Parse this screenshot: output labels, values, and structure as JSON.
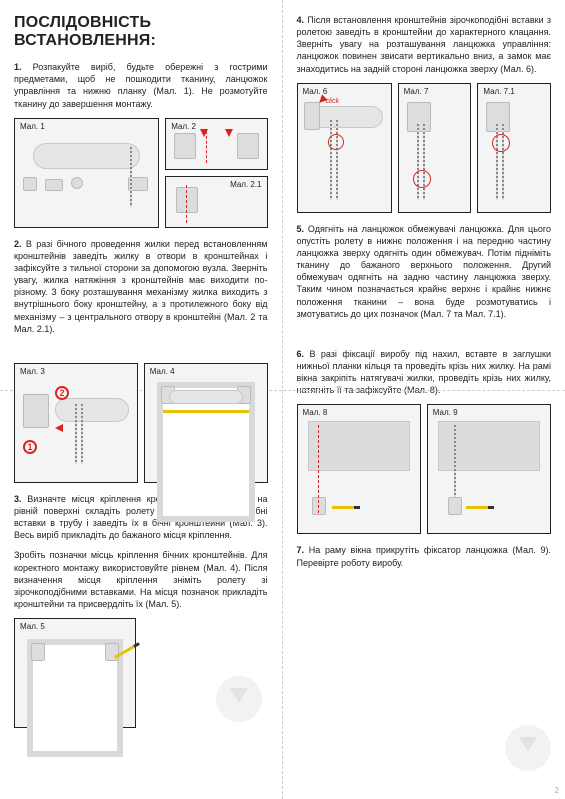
{
  "title": "Послідовність встановлення:",
  "left": {
    "p1": "1. Розпакуйте виріб, будьте обережні з гострими предметами, щоб не пошкодити тканину, ланцюжок управління та нижню планку (Мал. 1). Не розмотуйте тканину до завершення монтажу.",
    "p2": "2. В разі бічного проведення жилки перед встановленням кронштейнів заведіть жилку в отвори в кронштейнах і зафіксуйте з тильної сторони за допомогою вузла. Зверніть увагу, жилка натяжіння з кронштейнів має виходити по-різному. З боку розташування механізму жилка виходить з внутрішнього боку кронштейну, а з протилежного боку від механізму – з центрального отвору в кронштейні (Мал. 2 та Мал. 2.1).",
    "p3a": "3. Визначте місця кріплення кронштейнів. Для цього на рівній поверхні складіть ролету – вставте зірочкоподібні вставки в трубу і заведіть їх в бічні кронштейни (Мал. 3). Весь виріб прикладіть до бажаного місця кріплення.",
    "p3b": "Зробіть позначки місць кріплення бічних кронштейнів. Для коректного монтажу використовуйте рівнем (Мал. 4). Після визначення місця кріплення зніміть ролету зі зірочкоподібними вставками. На місця позначок прикладіть кронштейни та присвердліть їх (Мал. 5).",
    "fig1": "Мал. 1",
    "fig2": "Мал. 2",
    "fig21": "Мал. 2.1",
    "fig3": "Мал. 3",
    "fig4": "Мал. 4",
    "fig5": "Мал. 5",
    "n1": "1",
    "n2": "2"
  },
  "right": {
    "p4": "4. Після встановлення кронштейнів зірочкоподібні вставки з ролетою заведіть в кронштейни до характерного клацання. Зверніть увагу на розташування ланцюжка управління: ланцюжок повинен звисати вертикально вниз, а замок має знаходитись на задній стороні ланцюжка зверху (Мал. 6).",
    "p5": "5. Одягніть на ланцюжок обмежувачі ланцюжка. Для цього опустіть ролету в нижнє положення і на передню частину ланцюжка зверху одягніть один обмежувач. Потім підніміть тканину до бажаного верхнього положення. Другий обмежувач одягніть на задню частину ланцюжка зверху. Таким чином позначається крайнє верхнє і крайнє нижнє положення тканини – вона буде розмотуватись і змотуватись до цих позначок (Мал. 7 та Мал. 7.1).",
    "p6": "6. В разі фіксації виробу під нахил, вставте в заглушки нижньої планки кільця та проведіть крізь них жилку. На рамі вікна закріпіть натягувачі жилки, проведіть крізь них жилку, натягніть її та зафіксуйте (Мал. 8).",
    "p7": "7. На раму вікна прикрутіть фіксатор ланцюжка (Мал. 9). Перевірте роботу виробу.",
    "fig6": "Мал. 6",
    "fig7": "Мал. 7",
    "fig71": "Мал. 7.1",
    "fig8": "Мал. 8",
    "fig9": "Мал. 9",
    "click": "click"
  },
  "pagenum": "2"
}
